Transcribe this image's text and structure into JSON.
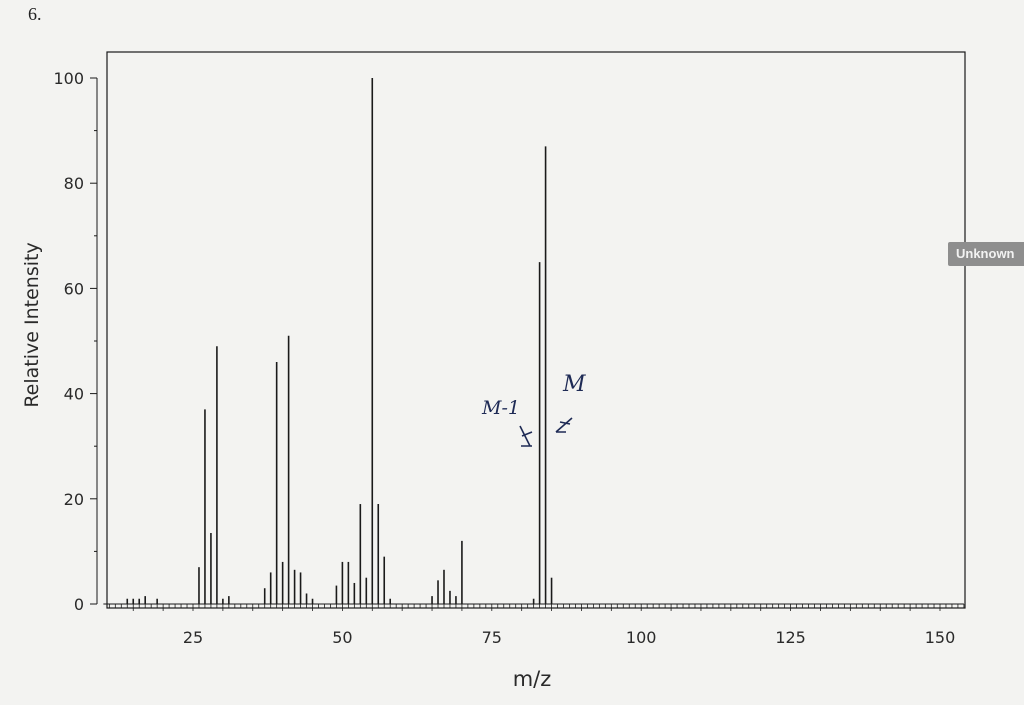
{
  "page": {
    "question_number": "6.",
    "side_tab_label": "Unknown"
  },
  "colors": {
    "ink": "#1a1a1a",
    "paper": "#f3f3f1",
    "annotation": "#1e2a55",
    "tab": "#8e8e8e"
  },
  "chart_data": {
    "type": "bar",
    "title": "",
    "xlabel": "m/z",
    "ylabel": "Relative Intensity",
    "xlim": [
      10,
      154
    ],
    "ylim": [
      0,
      100
    ],
    "x_ticks": [
      25,
      50,
      75,
      100,
      125,
      150
    ],
    "y_ticks": [
      0,
      20,
      40,
      60,
      80,
      100
    ],
    "grid": false,
    "points": [
      {
        "x": 14,
        "y": 1
      },
      {
        "x": 15,
        "y": 1
      },
      {
        "x": 16,
        "y": 1
      },
      {
        "x": 17,
        "y": 1.5
      },
      {
        "x": 19,
        "y": 1
      },
      {
        "x": 26,
        "y": 7
      },
      {
        "x": 27,
        "y": 37
      },
      {
        "x": 28,
        "y": 13.5
      },
      {
        "x": 29,
        "y": 49
      },
      {
        "x": 30,
        "y": 1
      },
      {
        "x": 31,
        "y": 1.5
      },
      {
        "x": 37,
        "y": 3
      },
      {
        "x": 38,
        "y": 6
      },
      {
        "x": 39,
        "y": 46
      },
      {
        "x": 40,
        "y": 8
      },
      {
        "x": 41,
        "y": 51
      },
      {
        "x": 42,
        "y": 6.5
      },
      {
        "x": 43,
        "y": 6
      },
      {
        "x": 44,
        "y": 2
      },
      {
        "x": 45,
        "y": 1
      },
      {
        "x": 49,
        "y": 3.5
      },
      {
        "x": 50,
        "y": 8
      },
      {
        "x": 51,
        "y": 8
      },
      {
        "x": 52,
        "y": 4
      },
      {
        "x": 53,
        "y": 19
      },
      {
        "x": 54,
        "y": 5
      },
      {
        "x": 55,
        "y": 100
      },
      {
        "x": 56,
        "y": 19
      },
      {
        "x": 57,
        "y": 9
      },
      {
        "x": 58,
        "y": 1
      },
      {
        "x": 65,
        "y": 1.5
      },
      {
        "x": 66,
        "y": 4.5
      },
      {
        "x": 67,
        "y": 6.5
      },
      {
        "x": 68,
        "y": 2.5
      },
      {
        "x": 69,
        "y": 1.5
      },
      {
        "x": 70,
        "y": 12
      },
      {
        "x": 82,
        "y": 1
      },
      {
        "x": 83,
        "y": 65
      },
      {
        "x": 84,
        "y": 87
      },
      {
        "x": 85,
        "y": 5
      }
    ],
    "annotations": [
      {
        "text": "M-1",
        "x": 83
      },
      {
        "text": "M",
        "x": 84
      }
    ]
  }
}
